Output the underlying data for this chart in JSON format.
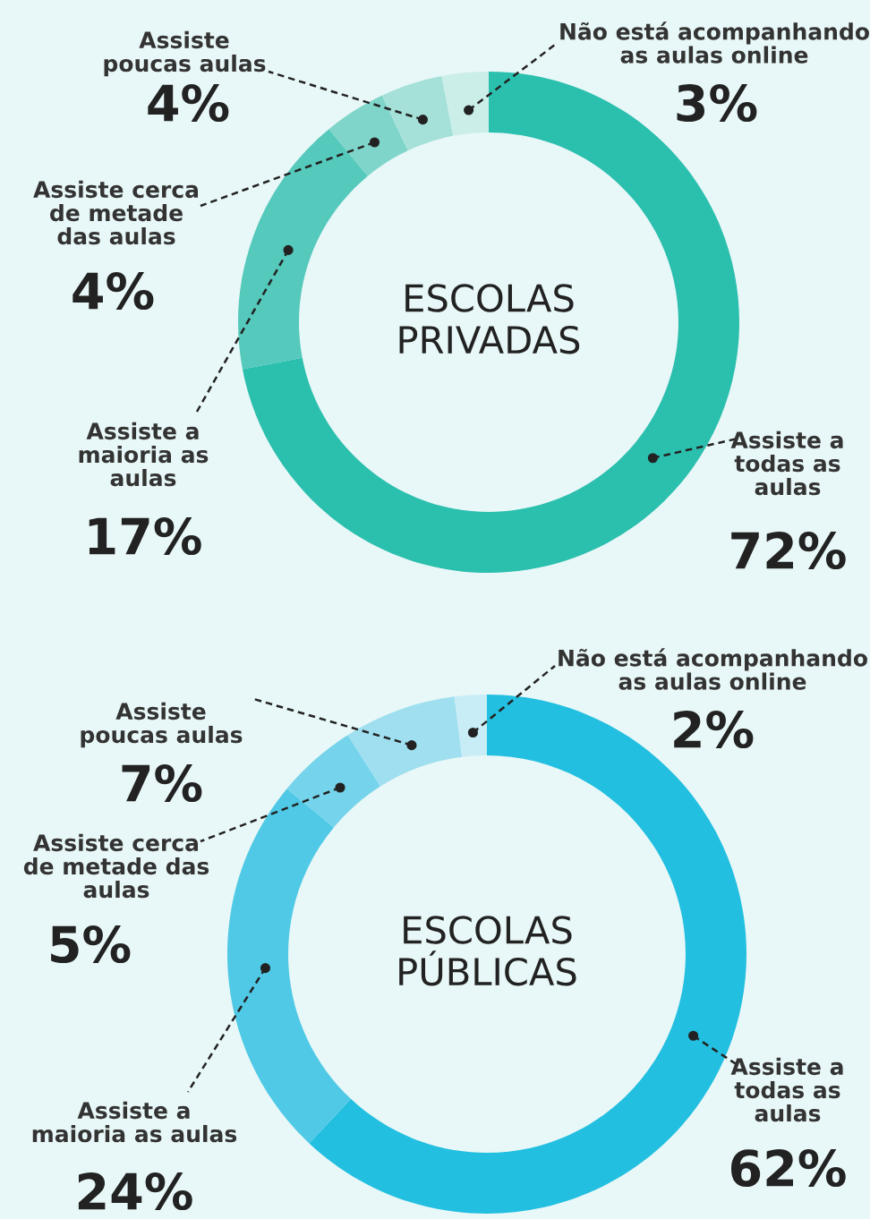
{
  "chart_data": [
    {
      "type": "donut",
      "title": "ESCOLAS\nPRIVADAS",
      "categories": [
        "Assiste a\ntodas as\naulas",
        "Assiste a\nmaioria as\naulas",
        "Assiste cerca\nde metade\ndas aulas",
        "Assiste\npoucas aulas",
        "Não está acompanhando\nas aulas online"
      ],
      "values": [
        72,
        17,
        4,
        4,
        3
      ],
      "value_labels": [
        "72%",
        "17%",
        "4%",
        "4%",
        "3%"
      ],
      "colors": [
        "#2bbfae",
        "#55c9bc",
        "#7fd5ca",
        "#a5e1d9",
        "#cbeee9"
      ]
    },
    {
      "type": "donut",
      "title": "ESCOLAS\nPÚBLICAS",
      "categories": [
        "Assiste a\ntodas as\naulas",
        "Assiste a\nmaioria as aulas",
        "Assiste cerca\nde metade das\naulas",
        "Assiste\npoucas aulas",
        "Não está acompanhando\nas aulas online"
      ],
      "values": [
        62,
        24,
        5,
        7,
        2
      ],
      "value_labels": [
        "62%",
        "24%",
        "5%",
        "7%",
        "2%"
      ],
      "colors": [
        "#22bfe0",
        "#4fc9e5",
        "#75d4eb",
        "#9fdff0",
        "#c8edf6"
      ]
    }
  ]
}
